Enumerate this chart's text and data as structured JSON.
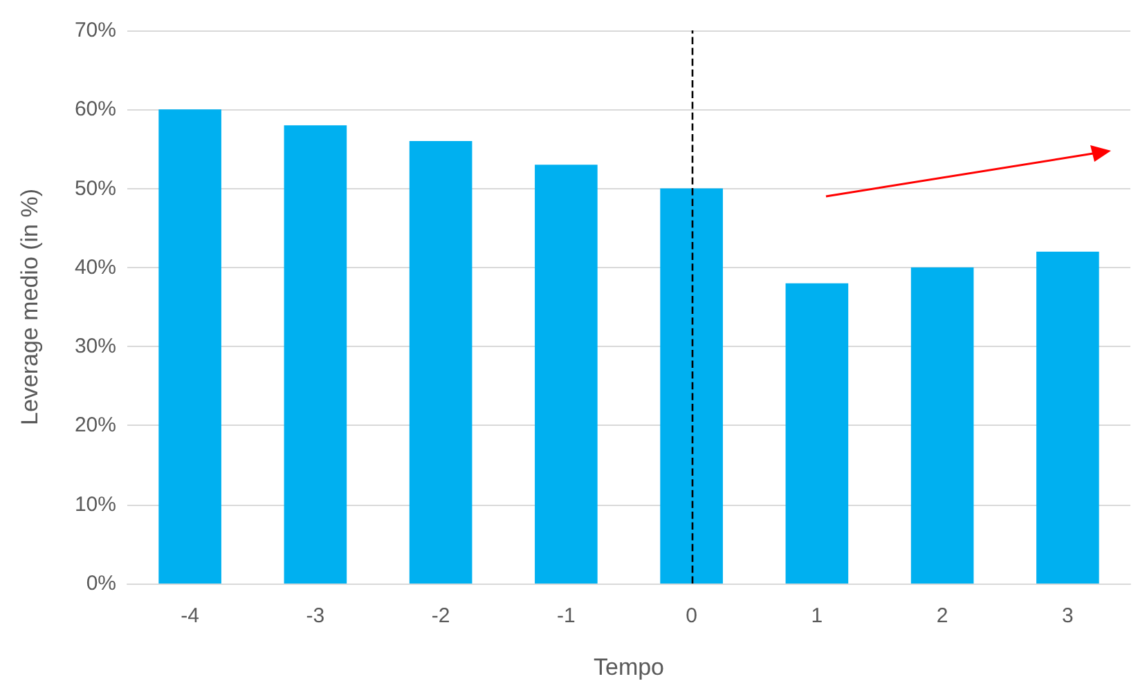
{
  "chart_data": {
    "type": "bar",
    "xlabel": "Tempo",
    "ylabel": "Leverage medio (in %)",
    "categories": [
      "-4",
      "-3",
      "-2",
      "-1",
      "0",
      "1",
      "2",
      "3"
    ],
    "values": [
      60,
      58,
      56,
      53,
      50,
      38,
      40,
      42
    ],
    "color": "#00b0f0",
    "ylim": [
      0,
      70
    ],
    "yticks": [
      {
        "value": 0,
        "label": "0%"
      },
      {
        "value": 10,
        "label": "10%"
      },
      {
        "value": 20,
        "label": "20%"
      },
      {
        "value": 30,
        "label": "30%"
      },
      {
        "value": 40,
        "label": "40%"
      },
      {
        "value": 50,
        "label": "50%"
      },
      {
        "value": 60,
        "label": "60%"
      },
      {
        "value": 70,
        "label": "70%"
      }
    ],
    "grid": "y",
    "ref_lines": [
      {
        "axis": "x",
        "value": "0",
        "color": "#000000",
        "line_style": "dashed"
      }
    ]
  }
}
